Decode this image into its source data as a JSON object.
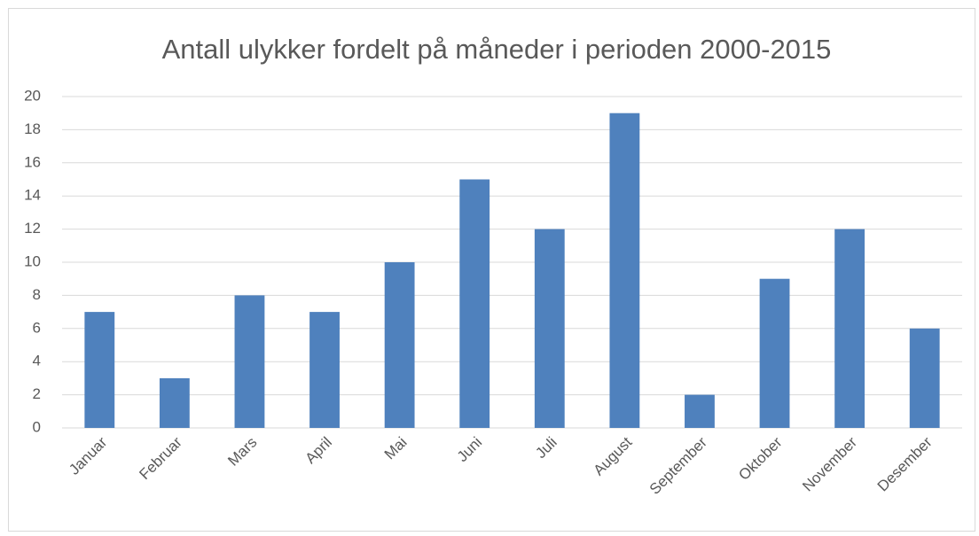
{
  "chart_data": {
    "type": "bar",
    "title": "Antall ulykker fordelt på måneder i perioden 2000-2015",
    "categories": [
      "Januar",
      "Februar",
      "Mars",
      "April",
      "Mai",
      "Juni",
      "Juli",
      "August",
      "September",
      "Oktober",
      "November",
      "Desember"
    ],
    "values": [
      7,
      3,
      8,
      7,
      10,
      15,
      12,
      19,
      2,
      9,
      12,
      6
    ],
    "color": "#4f81bd",
    "ylim": [
      0,
      20
    ],
    "yticks": [
      0,
      2,
      4,
      6,
      8,
      10,
      12,
      14,
      16,
      18,
      20
    ],
    "grid": true
  }
}
